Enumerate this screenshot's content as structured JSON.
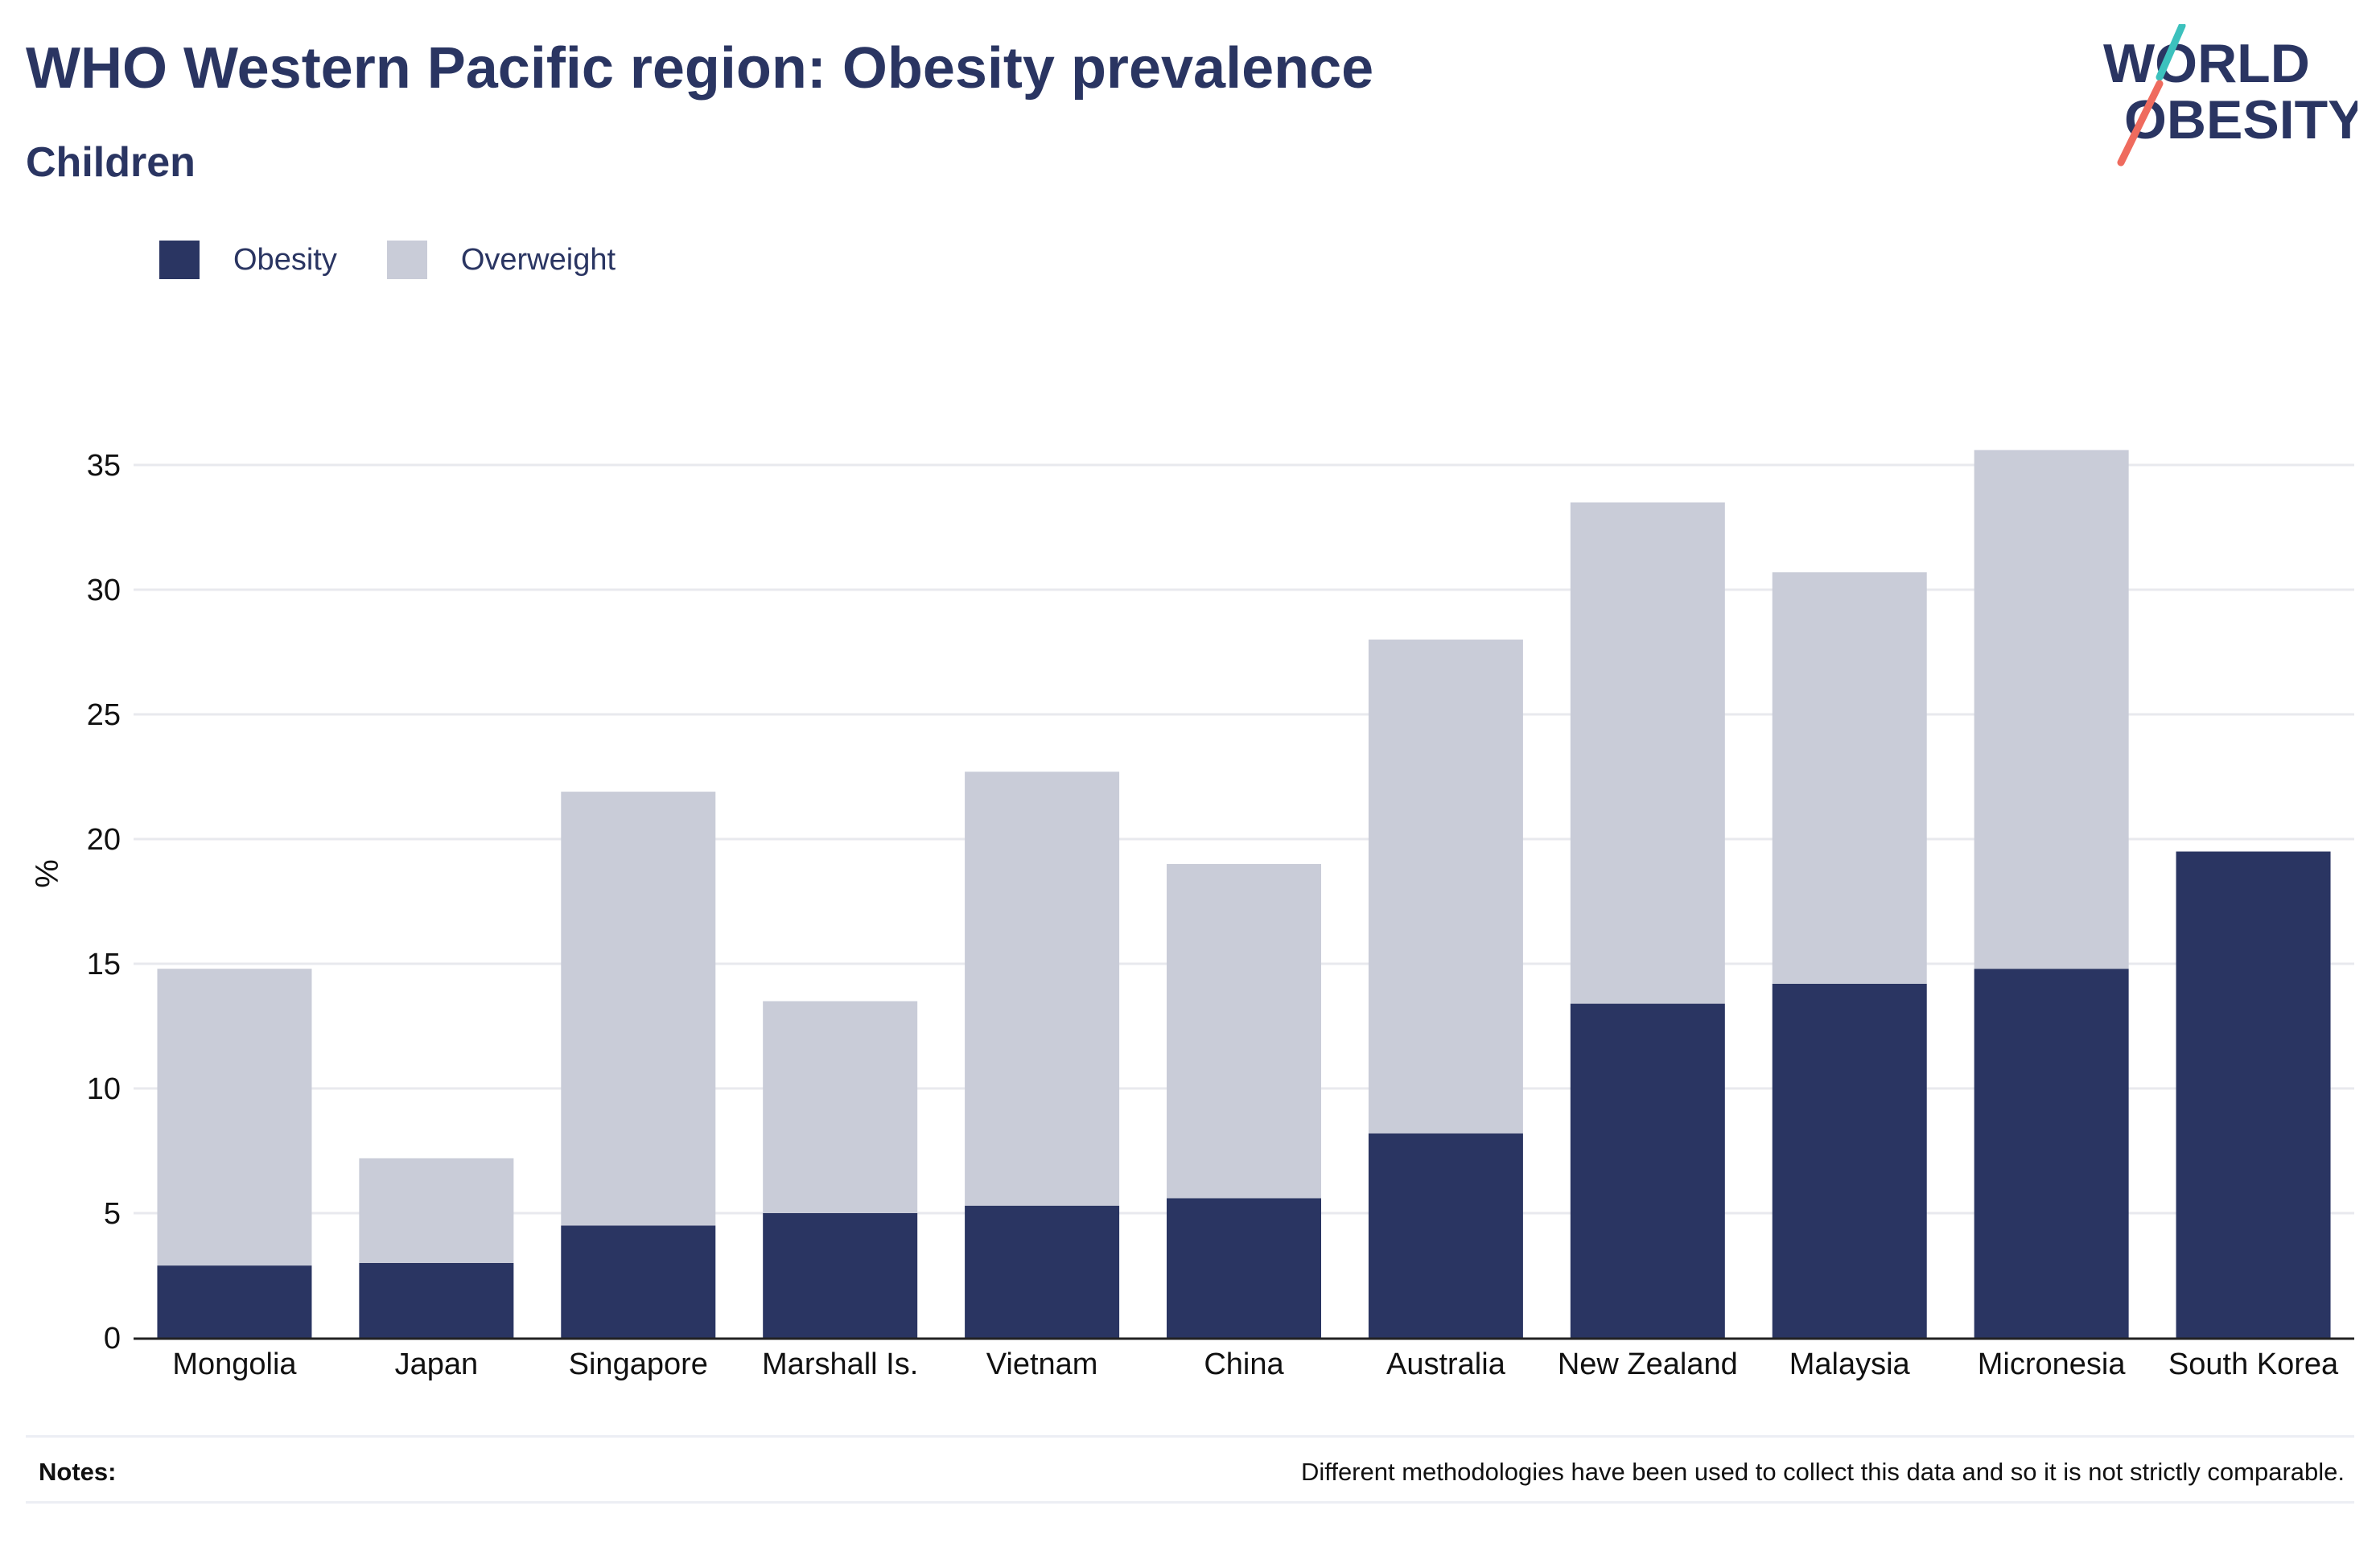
{
  "header": {
    "title": "WHO Western Pacific region: Obesity prevalence",
    "subtitle": "Children"
  },
  "logo": {
    "line1": "WORLD",
    "line2": "OBESITY"
  },
  "colors": {
    "obesity": "#2a3562",
    "overweight": "#c9ccd8",
    "text": "#2a3562",
    "grid": "#e8e9ee",
    "axis": "#222222",
    "logo_teal": "#3cc1bd",
    "logo_coral": "#ef6b5e"
  },
  "legend": {
    "obesity_label": "Obesity",
    "overweight_label": "Overweight"
  },
  "chart_data": {
    "type": "bar",
    "stacked": true,
    "title": "WHO Western Pacific region: Obesity prevalence",
    "subtitle": "Children",
    "xlabel": "",
    "ylabel": "%",
    "ylim": [
      0,
      37
    ],
    "yticks": [
      0,
      5,
      10,
      15,
      20,
      25,
      30,
      35
    ],
    "grid": true,
    "legend_position": "top-left",
    "categories": [
      "Mongolia",
      "Japan",
      "Singapore",
      "Marshall Is.",
      "Vietnam",
      "China",
      "Australia",
      "New Zealand",
      "Malaysia",
      "Micronesia",
      "South Korea"
    ],
    "series": [
      {
        "name": "Obesity",
        "values": [
          2.9,
          3.0,
          4.5,
          5.0,
          5.3,
          5.6,
          8.2,
          13.4,
          14.2,
          14.8,
          19.5
        ]
      },
      {
        "name": "Overweight",
        "values": [
          11.9,
          4.2,
          17.4,
          8.5,
          17.4,
          13.4,
          19.8,
          20.1,
          16.5,
          20.8,
          0
        ]
      }
    ]
  },
  "notes": {
    "label": "Notes:",
    "text": "Different methodologies have been used to collect this data and so it is not strictly comparable."
  }
}
